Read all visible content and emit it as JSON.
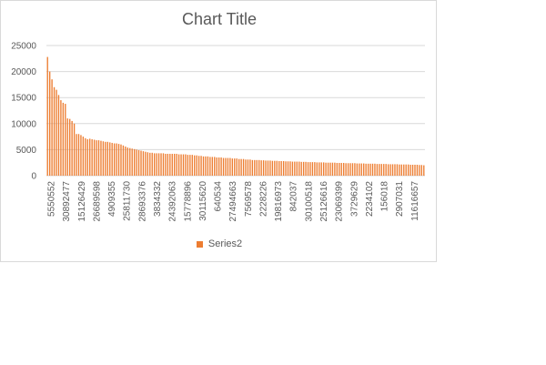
{
  "colors": {
    "bar": "#ED7D31",
    "grid": "#d9d9d9",
    "text": "#595959"
  },
  "chart_data": {
    "type": "bar",
    "title": "Chart Title",
    "xlabel": "",
    "ylabel": "",
    "ylim": [
      0,
      25000
    ],
    "y_ticks": [
      0,
      5000,
      10000,
      15000,
      20000,
      25000
    ],
    "grid": true,
    "legend_position": "bottom",
    "x_tick_labels": [
      "5550552",
      "30892477",
      "15126429",
      "26689598",
      "4909355",
      "25811730",
      "28693376",
      "3834332",
      "24392063",
      "15778896",
      "30115620",
      "640534",
      "27494663",
      "7569578",
      "2228226",
      "19816973",
      "842037",
      "30100518",
      "25126616",
      "23069399",
      "3729629",
      "2234102",
      "156018",
      "2907031",
      "11616657"
    ],
    "series": [
      {
        "name": "Series2",
        "values": [
          22800,
          20000,
          18500,
          17000,
          16500,
          15500,
          14500,
          14000,
          13800,
          11000,
          10900,
          10500,
          10000,
          8000,
          8000,
          7800,
          7500,
          7200,
          7000,
          7100,
          7000,
          6900,
          6800,
          6800,
          6700,
          6600,
          6500,
          6500,
          6400,
          6300,
          6200,
          6200,
          6100,
          6000,
          5800,
          5600,
          5400,
          5300,
          5200,
          5100,
          5000,
          4900,
          4800,
          4700,
          4600,
          4500,
          4400,
          4400,
          4300,
          4300,
          4300,
          4300,
          4300,
          4200,
          4200,
          4200,
          4200,
          4200,
          4200,
          4100,
          4100,
          4100,
          4100,
          4000,
          4000,
          4000,
          3900,
          3900,
          3800,
          3800,
          3700,
          3700,
          3700,
          3600,
          3600,
          3600,
          3500,
          3500,
          3500,
          3400,
          3400,
          3400,
          3400,
          3300,
          3300,
          3300,
          3200,
          3200,
          3200,
          3100,
          3100,
          3100,
          3000,
          3000,
          3000,
          3000,
          2950,
          2950,
          2900,
          2900,
          2900,
          2850,
          2850,
          2850,
          2800,
          2800,
          2800,
          2750,
          2750,
          2750,
          2700,
          2700,
          2700,
          2700,
          2650,
          2650,
          2650,
          2600,
          2600,
          2600,
          2600,
          2550,
          2550,
          2550,
          2550,
          2500,
          2500,
          2500,
          2500,
          2500,
          2450,
          2450,
          2450,
          2450,
          2400,
          2400,
          2400,
          2400,
          2400,
          2350,
          2350,
          2350,
          2350,
          2300,
          2300,
          2300,
          2300,
          2300,
          2250,
          2250,
          2250,
          2250,
          2250,
          2200,
          2200,
          2200,
          2200,
          2200,
          2150,
          2150,
          2150,
          2150,
          2150,
          2100,
          2100,
          2100,
          2100,
          2050,
          2050,
          2000
        ]
      }
    ]
  }
}
